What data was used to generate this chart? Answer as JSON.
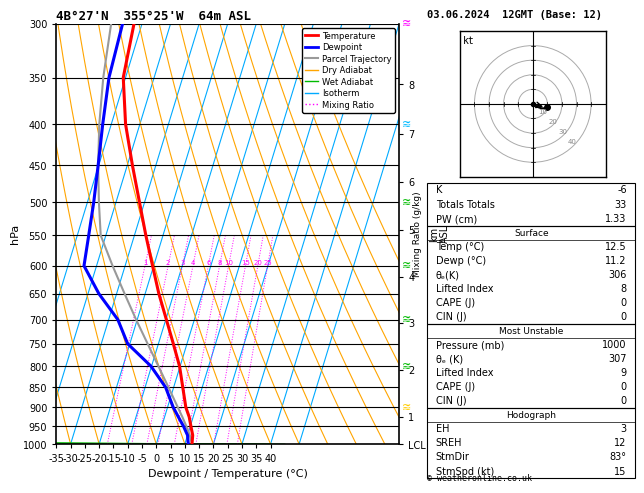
{
  "title_left": "4B°27'N  355°25'W  64m ASL",
  "title_right": "03.06.2024  12GMT (Base: 12)",
  "xlabel": "Dewpoint / Temperature (°C)",
  "ylabel_left": "hPa",
  "pressure_levels": [
    300,
    350,
    400,
    450,
    500,
    550,
    600,
    650,
    700,
    750,
    800,
    850,
    900,
    950,
    1000
  ],
  "km_labels": [
    "8",
    "7",
    "6",
    "5",
    "4",
    "3",
    "2",
    "1",
    "LCL"
  ],
  "km_pressures": [
    357,
    411,
    472,
    541,
    619,
    707,
    808,
    925,
    1000
  ],
  "x_min": -35,
  "x_max": 40,
  "p_min": 300,
  "p_max": 1000,
  "isotherm_color": "#00AAFF",
  "dry_adiabat_color": "#FFA500",
  "wet_adiabat_color": "#00BB00",
  "mixing_ratio_color": "#FF00FF",
  "mixing_ratios": [
    1,
    2,
    3,
    4,
    6,
    8,
    10,
    15,
    20,
    25
  ],
  "temp_profile_p": [
    1000,
    975,
    950,
    925,
    900,
    850,
    800,
    750,
    700,
    650,
    600,
    550,
    500,
    450,
    400,
    350,
    300
  ],
  "temp_profile_t": [
    12.5,
    11.8,
    10.2,
    8.6,
    6.4,
    3.2,
    -0.2,
    -4.8,
    -9.8,
    -15.2,
    -20.4,
    -26.0,
    -31.8,
    -38.2,
    -45.0,
    -50.8,
    -52.8
  ],
  "dewp_profile_p": [
    1000,
    975,
    950,
    925,
    900,
    850,
    800,
    750,
    700,
    650,
    600,
    550,
    500,
    450,
    400,
    350,
    300
  ],
  "dewp_profile_t": [
    11.2,
    10.0,
    7.6,
    4.8,
    2.0,
    -2.8,
    -10.2,
    -20.8,
    -26.8,
    -36.2,
    -44.4,
    -46.0,
    -47.8,
    -50.2,
    -53.0,
    -55.8,
    -56.8
  ],
  "parcel_profile_p": [
    1000,
    975,
    950,
    925,
    900,
    850,
    800,
    750,
    700,
    650,
    600,
    550,
    500,
    450,
    400,
    350,
    300
  ],
  "parcel_profile_t": [
    12.5,
    10.8,
    8.6,
    6.2,
    3.6,
    -1.8,
    -7.6,
    -13.8,
    -20.4,
    -27.2,
    -34.4,
    -41.8,
    -46.0,
    -50.2,
    -54.2,
    -57.8,
    -60.8
  ],
  "temp_color": "#FF0000",
  "dewp_color": "#0000FF",
  "parcel_color": "#999999",
  "skew_factor": 1.2,
  "stats": {
    "K": "-6",
    "Totals_Totals": "33",
    "PW_cm": "1.33",
    "Surface_Temp": "12.5",
    "Surface_Dewp": "11.2",
    "Surface_theta_e": "306",
    "Surface_LI": "8",
    "Surface_CAPE": "0",
    "Surface_CIN": "0",
    "MU_Pressure": "1000",
    "MU_theta_e": "307",
    "MU_LI": "9",
    "MU_CAPE": "0",
    "MU_CIN": "0",
    "EH": "3",
    "SREH": "12",
    "StmDir": "83°",
    "StmSpd": "15"
  }
}
